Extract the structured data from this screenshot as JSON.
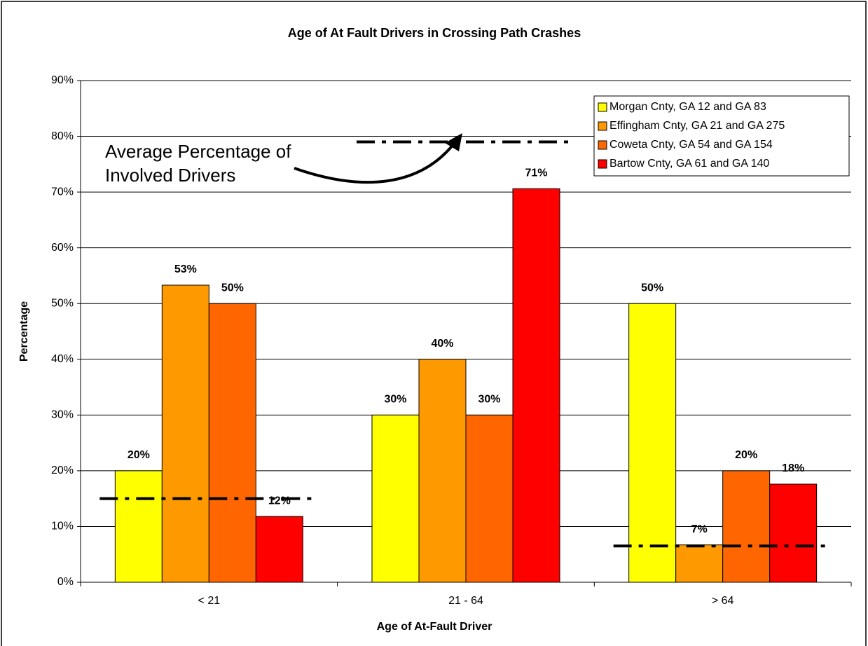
{
  "chart_data": {
    "type": "bar",
    "title": "Age of At Fault Drivers in Crossing Path Crashes",
    "x_label": "Age of At-Fault Driver",
    "y_label": "Percentage",
    "categories": [
      "< 21",
      "21 - 64",
      "> 64"
    ],
    "series": [
      {
        "name": "Morgan Cnty, GA 12 and GA 83",
        "color": "#ffff00",
        "values": [
          20,
          30,
          50
        ],
        "value_labels": [
          "20%",
          "30%",
          "50%"
        ]
      },
      {
        "name": "Effingham Cnty, GA 21 and GA 275",
        "color": "#ff9900",
        "values": [
          53.3,
          40,
          6.7
        ],
        "value_labels": [
          "53%",
          "40%",
          "7%"
        ]
      },
      {
        "name": "Coweta Cnty, GA 54 and GA 154",
        "color": "#ff6600",
        "values": [
          50,
          30,
          20
        ],
        "value_labels": [
          "50%",
          "30%",
          "20%"
        ]
      },
      {
        "name": "Bartow Cnty, GA 61 and GA 140",
        "color": "#ff0000",
        "values": [
          11.8,
          70.6,
          17.6
        ],
        "value_labels": [
          "12%",
          "71%",
          "18%"
        ]
      }
    ],
    "average_lines": {
      "values": [
        15,
        79,
        6.5
      ],
      "color": "#000000"
    },
    "annotation": [
      "Average Percentage of",
      "Involved Drivers"
    ],
    "ylim": [
      0,
      90
    ],
    "yticks": [
      {
        "value": 0,
        "label": "0%"
      },
      {
        "value": 10,
        "label": "10%"
      },
      {
        "value": 20,
        "label": "20%"
      },
      {
        "value": 30,
        "label": "30%"
      },
      {
        "value": 40,
        "label": "40%"
      },
      {
        "value": 50,
        "label": "50%"
      },
      {
        "value": 60,
        "label": "60%"
      },
      {
        "value": 70,
        "label": "70%"
      },
      {
        "value": 80,
        "label": "80%"
      },
      {
        "value": 90,
        "label": "90%"
      }
    ],
    "grid": true,
    "legend": "top-right"
  }
}
